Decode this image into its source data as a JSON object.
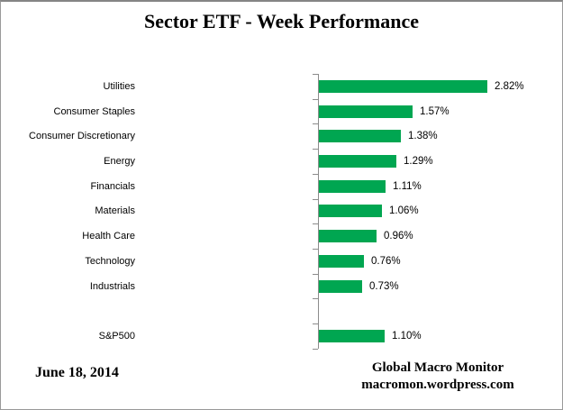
{
  "title": "Sector ETF - Week Performance",
  "footer": {
    "date": "June 18, 2014",
    "source_line1": "Global Macro Monitor",
    "source_line2": "macromon.wordpress.com"
  },
  "chart_data": {
    "type": "bar",
    "orientation": "horizontal",
    "title": "Sector ETF - Week Performance",
    "xlabel": "",
    "ylabel": "",
    "xlim": [
      0,
      3.0
    ],
    "grid": false,
    "legend": false,
    "bar_color": "#00A651",
    "axis_color": "#8C8C8C",
    "categories": [
      "Utilities",
      "Consumer Staples",
      "Consumer Discretionary",
      "Energy",
      "Financials",
      "Materials",
      "Health Care",
      "Technology",
      "Industrials",
      "",
      "S&P500"
    ],
    "values": [
      2.82,
      1.57,
      1.38,
      1.29,
      1.11,
      1.06,
      0.96,
      0.76,
      0.73,
      null,
      1.1
    ],
    "value_labels": [
      "2.82%",
      "1.57%",
      "1.38%",
      "1.29%",
      "1.11%",
      "1.06%",
      "0.96%",
      "0.76%",
      "0.73%",
      "",
      "1.10%"
    ]
  }
}
